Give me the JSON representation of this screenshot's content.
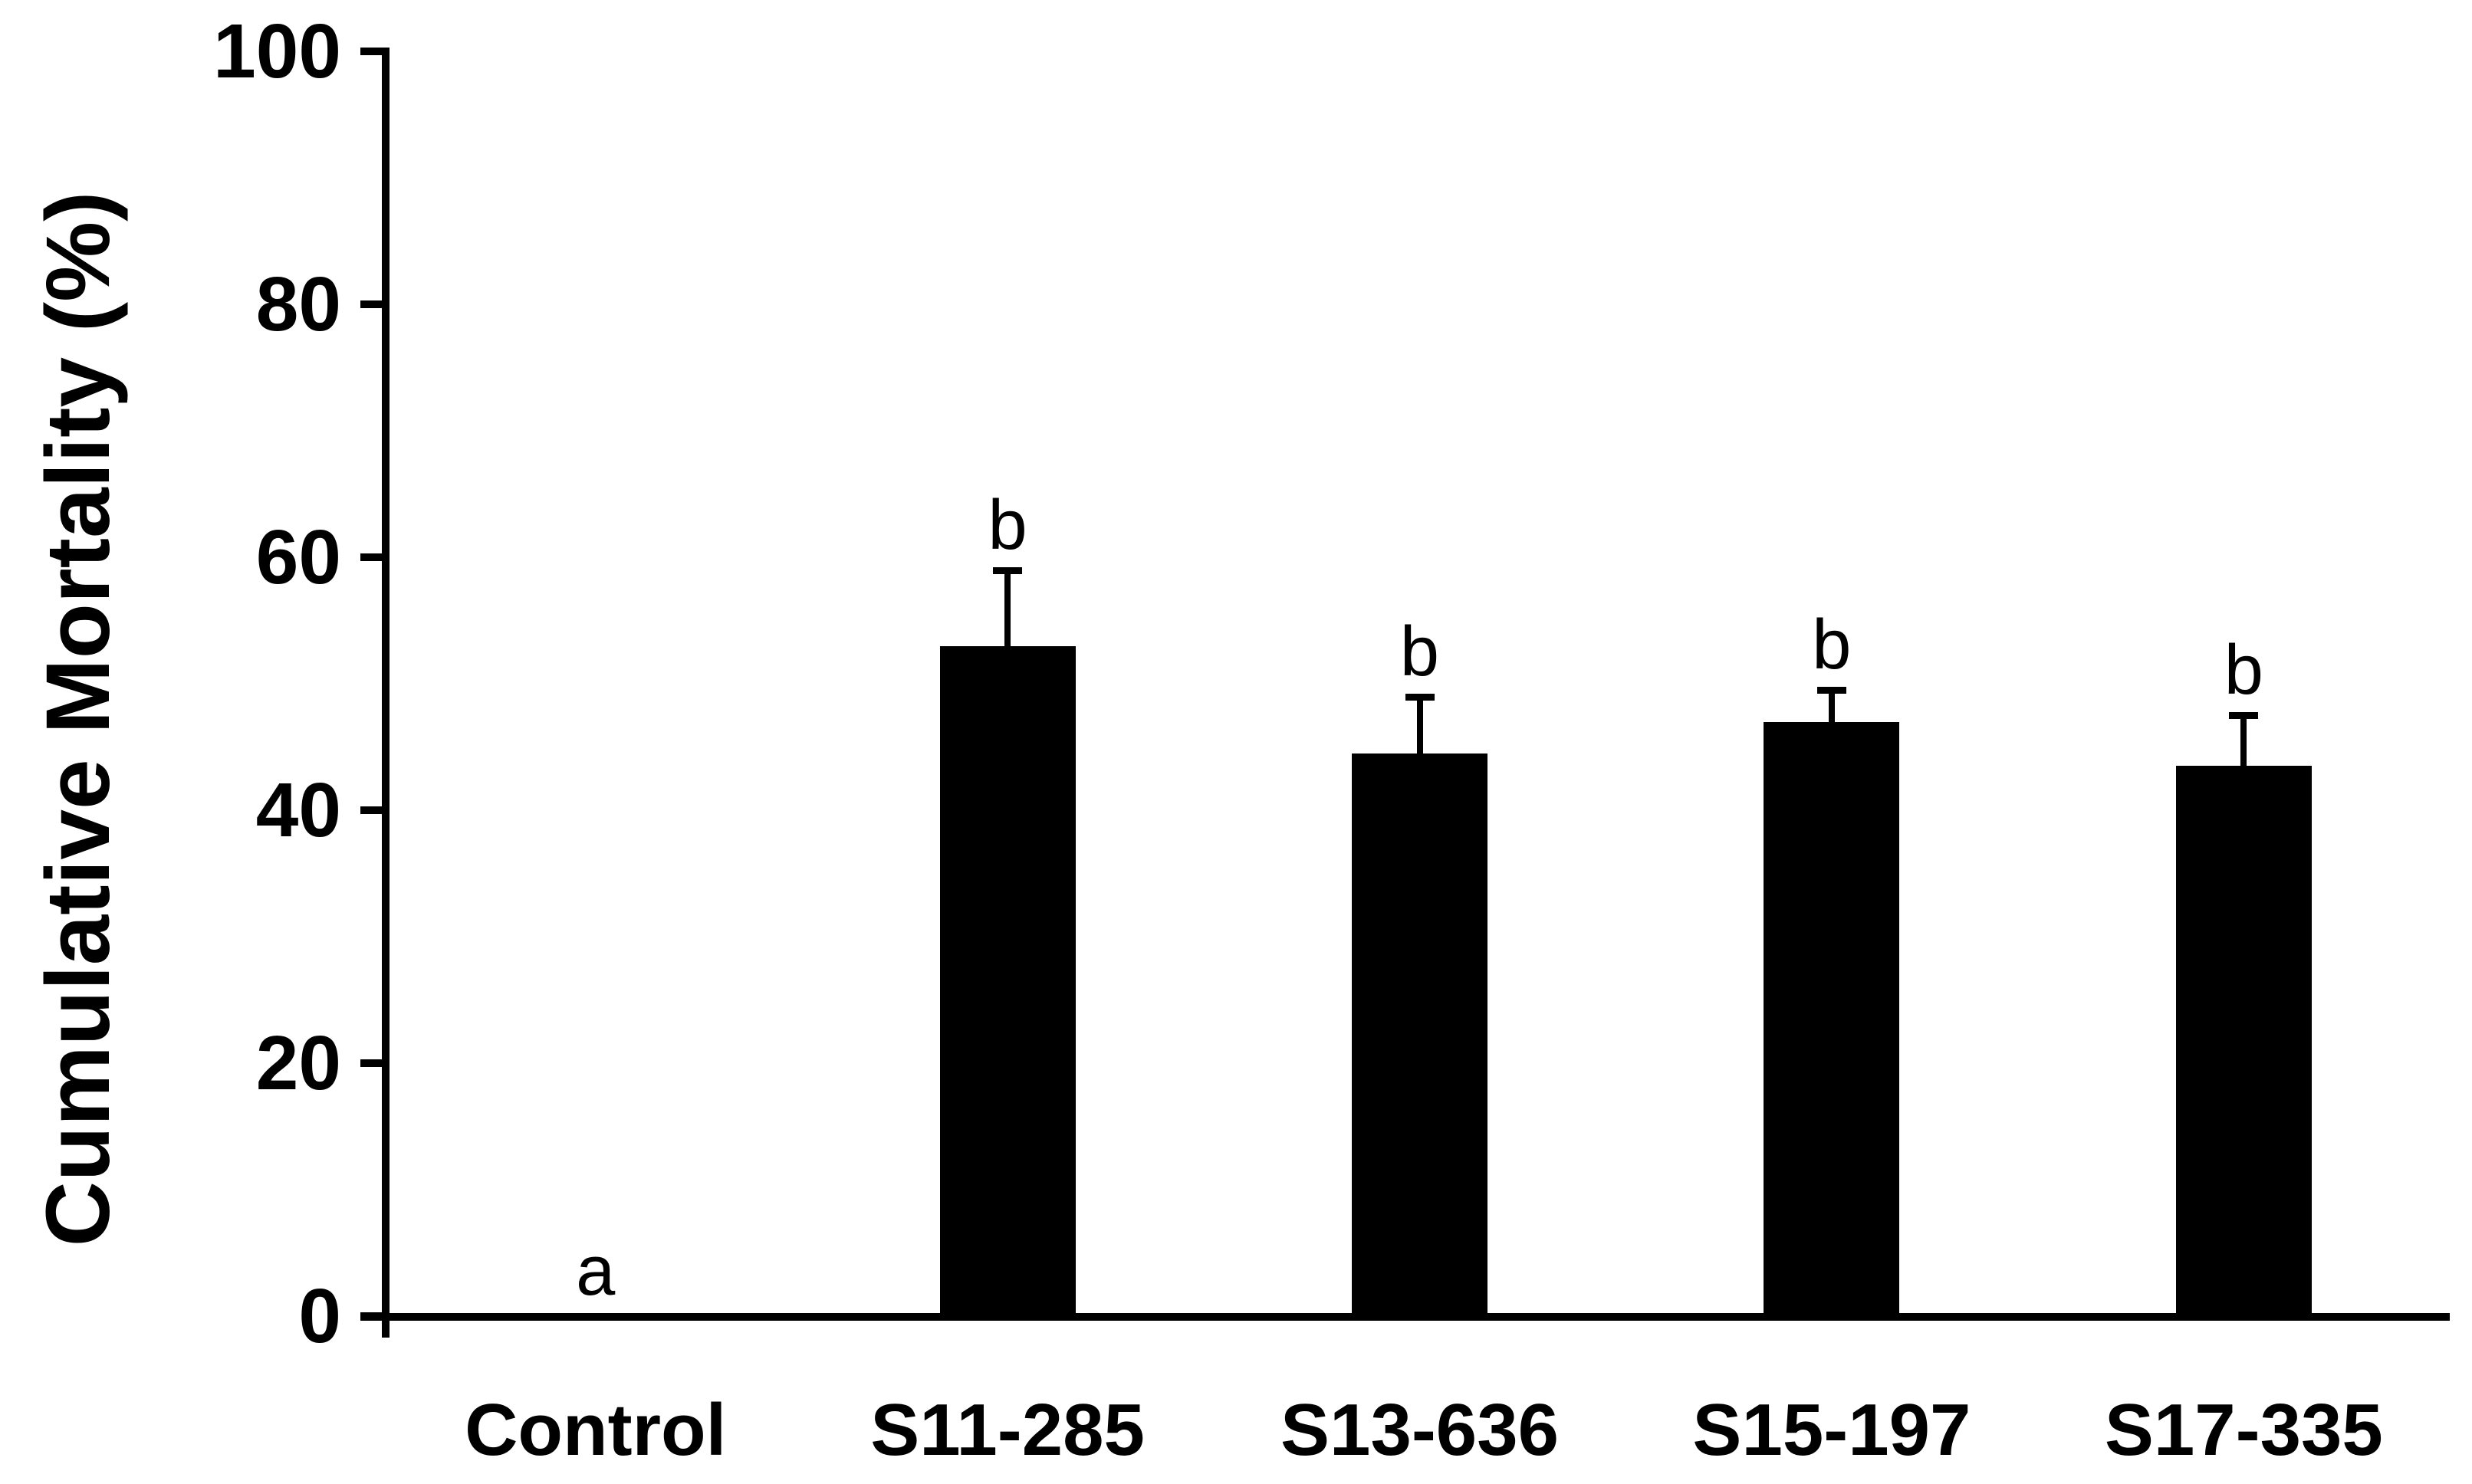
{
  "chart_data": {
    "type": "bar",
    "title": "",
    "ylabel": "Cumulative Mortality (%)",
    "xlabel": "",
    "categories": [
      "Control",
      "S11-285",
      "S13-636",
      "S15-197",
      "S17-335"
    ],
    "values": [
      0,
      53,
      44.5,
      47,
      43.5
    ],
    "errors_upper": [
      0,
      6,
      4.5,
      2.5,
      4
    ],
    "sig_letters": [
      "a",
      "b",
      "b",
      "b",
      "b"
    ],
    "yticks": [
      0,
      20,
      40,
      60,
      80,
      100
    ],
    "ylim": [
      0,
      100
    ],
    "grid": false,
    "legend": false,
    "bar_color": "#000000",
    "axis_color": "#000000",
    "text_color": "#000000",
    "background": "#ffffff"
  }
}
